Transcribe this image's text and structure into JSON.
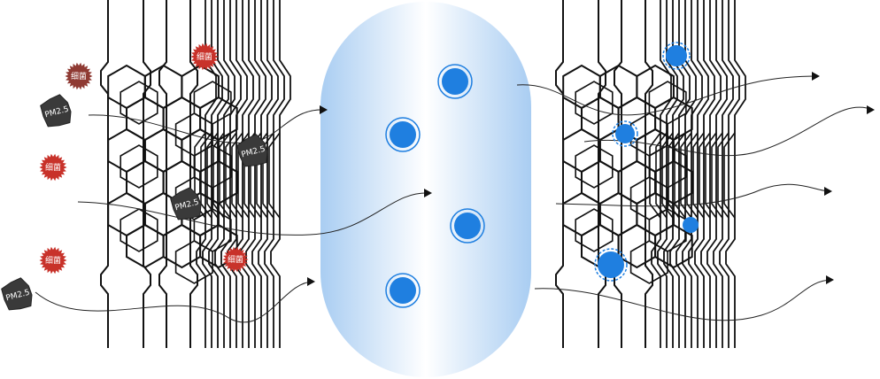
{
  "labels": {
    "bacteria": "细菌",
    "pm25": "PM2.5"
  },
  "colors": {
    "filter_line": "#111111",
    "bacteria": "#c8322a",
    "bacteria_dark": "#8f3a33",
    "pm25": "#3a3a3a",
    "capsule_blue": "#a9cdf2",
    "ion_blue": "#1f7fe0",
    "arrow": "#111111"
  },
  "icons": {
    "bacteria": "spiky-microbe-icon",
    "pm25": "dust-particle-icon",
    "ion": "ion-circle-icon",
    "arrow": "arrowhead-icon"
  }
}
